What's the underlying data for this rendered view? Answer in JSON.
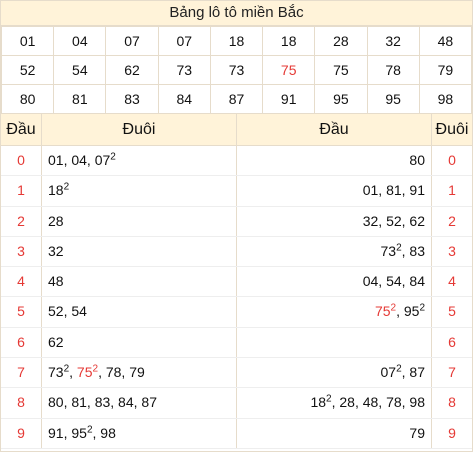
{
  "title": "Bảng lô tô miền Bắc",
  "lo": [
    [
      "01",
      "04",
      "07",
      "07",
      "18",
      "18",
      "28",
      "32",
      "48"
    ],
    [
      "52",
      "54",
      "62",
      "73",
      "73",
      "75",
      "75",
      "78",
      "79"
    ],
    [
      "80",
      "81",
      "83",
      "84",
      "87",
      "91",
      "95",
      "95",
      "98"
    ]
  ],
  "lo_red": [
    "75"
  ],
  "headers": {
    "dau_left": "Đầu",
    "duoi_left": "Đuôi",
    "dau_right": "Đầu",
    "duoi_right": "Đuôi"
  },
  "rows": [
    {
      "d": "0",
      "left": [
        {
          "t": "01, 04, 07"
        },
        {
          "t": "2",
          "sup": true
        }
      ],
      "right": [
        {
          "t": "80"
        }
      ]
    },
    {
      "d": "1",
      "left": [
        {
          "t": "18"
        },
        {
          "t": "2",
          "sup": true
        }
      ],
      "right": [
        {
          "t": "01, 81, 91"
        }
      ]
    },
    {
      "d": "2",
      "left": [
        {
          "t": "28"
        }
      ],
      "right": [
        {
          "t": "32, 52, 62"
        }
      ]
    },
    {
      "d": "3",
      "left": [
        {
          "t": "32"
        }
      ],
      "right": [
        {
          "t": "73"
        },
        {
          "t": "2",
          "sup": true
        },
        {
          "t": ", 83"
        }
      ]
    },
    {
      "d": "4",
      "left": [
        {
          "t": "48"
        }
      ],
      "right": [
        {
          "t": "04, 54, 84"
        }
      ]
    },
    {
      "d": "5",
      "left": [
        {
          "t": "52, 54"
        }
      ],
      "right": [
        {
          "t": "75",
          "red": true
        },
        {
          "t": "2",
          "sup": true,
          "red": true
        },
        {
          "t": ", 95"
        },
        {
          "t": "2",
          "sup": true
        }
      ]
    },
    {
      "d": "6",
      "left": [
        {
          "t": "62"
        }
      ],
      "right": []
    },
    {
      "d": "7",
      "left": [
        {
          "t": "73"
        },
        {
          "t": "2",
          "sup": true
        },
        {
          "t": ", "
        },
        {
          "t": "75",
          "red": true
        },
        {
          "t": "2",
          "sup": true,
          "red": true
        },
        {
          "t": ", 78, 79"
        }
      ],
      "right": [
        {
          "t": "07"
        },
        {
          "t": "2",
          "sup": true
        },
        {
          "t": ", 87"
        }
      ]
    },
    {
      "d": "8",
      "left": [
        {
          "t": "80, 81, 83, 84, 87"
        }
      ],
      "right": [
        {
          "t": "18"
        },
        {
          "t": "2",
          "sup": true
        },
        {
          "t": ", 28, 48, 78, 98"
        }
      ]
    },
    {
      "d": "9",
      "left": [
        {
          "t": "91, 95"
        },
        {
          "t": "2",
          "sup": true
        },
        {
          "t": ", 98"
        }
      ],
      "right": [
        {
          "t": "79"
        }
      ]
    }
  ]
}
